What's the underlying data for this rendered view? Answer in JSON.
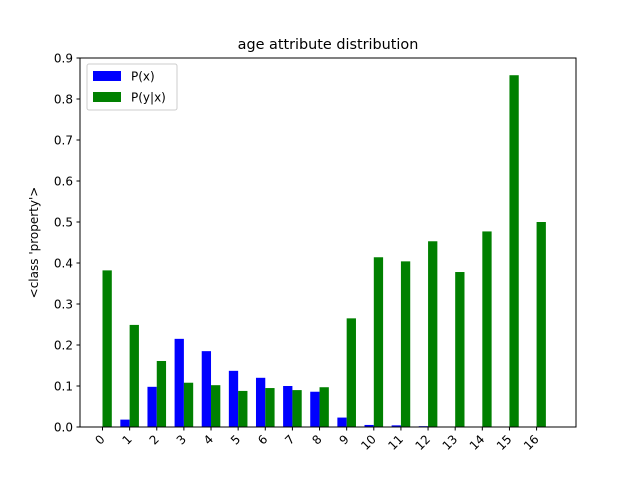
{
  "chart_data": {
    "type": "bar",
    "title": "age attribute distribution",
    "xlabel": "",
    "ylabel": "<class 'property'>",
    "ylim": [
      0,
      0.9
    ],
    "yticks": [
      "0.0",
      "0.1",
      "0.2",
      "0.3",
      "0.4",
      "0.5",
      "0.6",
      "0.7",
      "0.8",
      "0.9"
    ],
    "categories": [
      "0",
      "1",
      "2",
      "3",
      "4",
      "5",
      "6",
      "7",
      "8",
      "9",
      "10",
      "11",
      "12",
      "13",
      "14",
      "15",
      "16"
    ],
    "series": [
      {
        "name": "P(x)",
        "color": "#0000ff",
        "values": [
          0.0,
          0.018,
          0.098,
          0.215,
          0.185,
          0.137,
          0.12,
          0.1,
          0.086,
          0.023,
          0.005,
          0.004,
          0.002,
          0.001,
          0.0,
          0.0,
          0.0
        ]
      },
      {
        "name": "P(y|x)",
        "color": "#008000",
        "values": [
          0.382,
          0.249,
          0.161,
          0.108,
          0.102,
          0.088,
          0.095,
          0.09,
          0.097,
          0.265,
          0.414,
          0.404,
          0.453,
          0.378,
          0.477,
          0.858,
          0.5
        ]
      }
    ],
    "grid": false,
    "legend_position": "top-left"
  }
}
